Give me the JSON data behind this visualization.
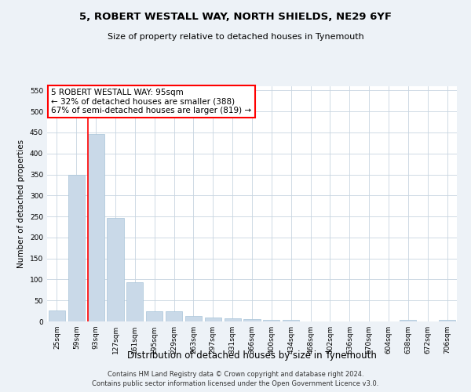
{
  "title": "5, ROBERT WESTALL WAY, NORTH SHIELDS, NE29 6YF",
  "subtitle": "Size of property relative to detached houses in Tynemouth",
  "xlabel": "Distribution of detached houses by size in Tynemouth",
  "ylabel": "Number of detached properties",
  "categories": [
    "25sqm",
    "59sqm",
    "93sqm",
    "127sqm",
    "161sqm",
    "195sqm",
    "229sqm",
    "263sqm",
    "297sqm",
    "331sqm",
    "366sqm",
    "400sqm",
    "434sqm",
    "468sqm",
    "502sqm",
    "536sqm",
    "570sqm",
    "604sqm",
    "638sqm",
    "672sqm",
    "706sqm"
  ],
  "values": [
    27,
    350,
    447,
    247,
    93,
    25,
    25,
    13,
    10,
    7,
    5,
    4,
    4,
    0,
    0,
    0,
    0,
    0,
    4,
    0,
    4
  ],
  "bar_color": "#c9d9e8",
  "bar_edge_color": "#a8c4d8",
  "red_line_index": 2,
  "ylim": [
    0,
    560
  ],
  "yticks": [
    0,
    50,
    100,
    150,
    200,
    250,
    300,
    350,
    400,
    450,
    500,
    550
  ],
  "annotation_box_text": "5 ROBERT WESTALL WAY: 95sqm\n← 32% of detached houses are smaller (388)\n67% of semi-detached houses are larger (819) →",
  "footer_line1": "Contains HM Land Registry data © Crown copyright and database right 2024.",
  "footer_line2": "Contains public sector information licensed under the Open Government Licence v3.0.",
  "background_color": "#edf2f7",
  "plot_bg_color": "#ffffff",
  "grid_color": "#c8d4e0",
  "title_fontsize": 9.5,
  "subtitle_fontsize": 8,
  "ylabel_fontsize": 7.5,
  "xlabel_fontsize": 8.5,
  "tick_fontsize": 6.5,
  "footer_fontsize": 6,
  "ann_fontsize": 7.5
}
